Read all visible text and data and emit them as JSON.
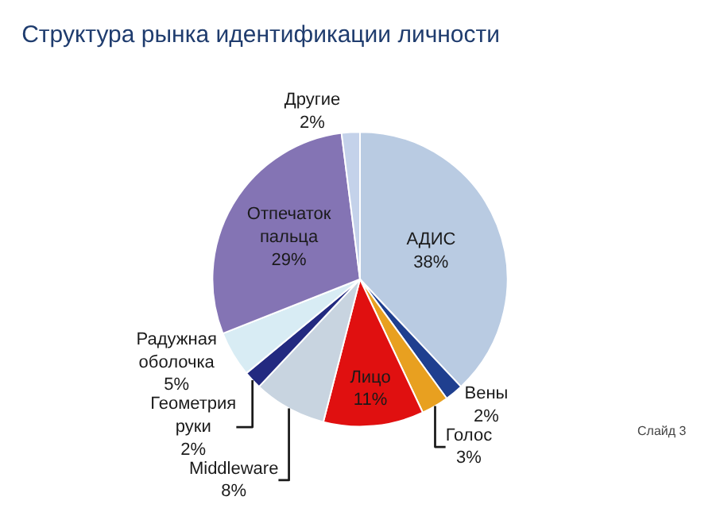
{
  "chart_data": {
    "type": "pie",
    "title": "Структура рынка идентификации личности",
    "categories": [
      "АДИС",
      "Вены",
      "Голос",
      "Лицо",
      "Middleware",
      "Геометрия руки",
      "Радужная оболочка",
      "Отпечаток пальца",
      "Другие"
    ],
    "values": [
      38,
      2,
      3,
      11,
      8,
      2,
      5,
      29,
      2
    ],
    "value_labels": [
      "38%",
      "2%",
      "3%",
      "11%",
      "8%",
      "2%",
      "5%",
      "29%",
      "2%"
    ],
    "colors": [
      "#b9cbe2",
      "#1f3f8f",
      "#e8a020",
      "#e01010",
      "#c8d4e0",
      "#232a80",
      "#d8ecf4",
      "#8474b4",
      "#c4d2ea"
    ],
    "annotations": [
      "Слайд 3"
    ],
    "legend": false
  }
}
